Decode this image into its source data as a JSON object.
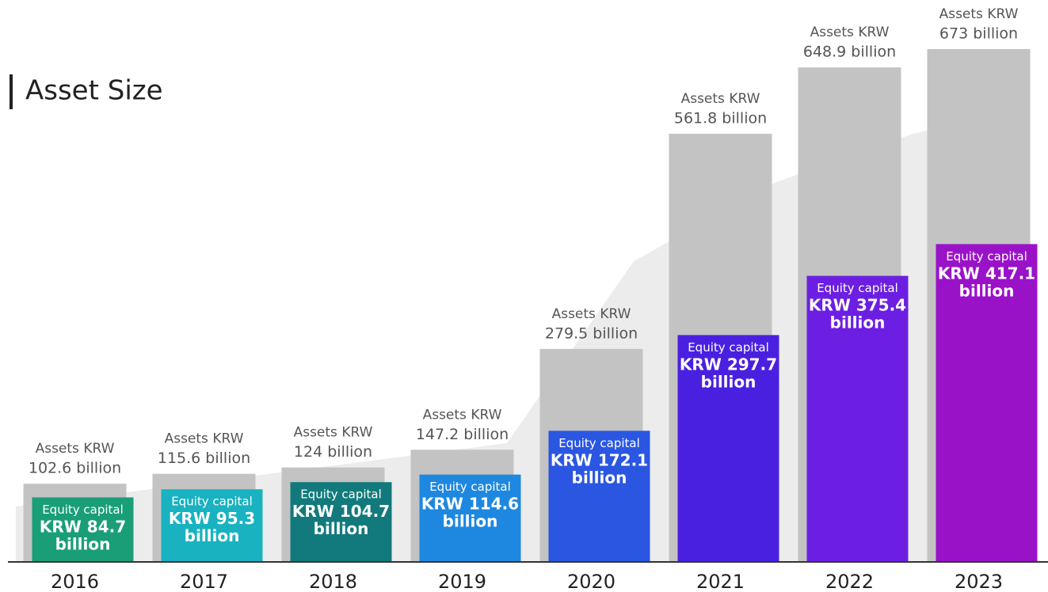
{
  "chart_data": {
    "type": "overlap-bar",
    "title": "Asset Size",
    "categories": [
      "2016",
      "2017",
      "2018",
      "2019",
      "2020",
      "2021",
      "2022",
      "2023"
    ],
    "series": [
      {
        "name": "Assets KRW",
        "color": "#c3c3c3",
        "values": [
          102.6,
          115.6,
          124,
          147.2,
          279.5,
          561.8,
          648.9,
          673
        ],
        "value_labels": [
          "102.6 billion",
          "115.6 billion",
          "124 billion",
          "147.2 billion",
          "279.5 billion",
          "561.8 billion",
          "648.9 billion",
          "673 billion"
        ]
      },
      {
        "name": "Equity capital",
        "colors": [
          "#1a9e78",
          "#18b2c0",
          "#127a7c",
          "#1e88e0",
          "#2a56e2",
          "#4a20e0",
          "#6c1fe2",
          "#9a12c8"
        ],
        "values": [
          84.7,
          95.3,
          104.7,
          114.6,
          172.1,
          297.7,
          375.4,
          417.1
        ],
        "value_labels": [
          "KRW 84.7 billion",
          "KRW 95.3 billion",
          "KRW 104.7 billion",
          "KRW 114.6 billion",
          "KRW 172.1 billion",
          "KRW 297.7 billion",
          "KRW 375.4 billion",
          "KRW 417.1 billion"
        ]
      }
    ]
  }
}
